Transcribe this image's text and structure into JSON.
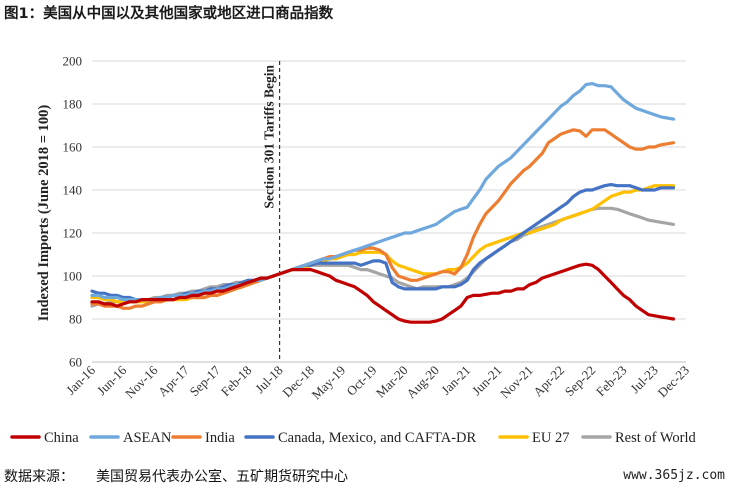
{
  "figure_title": "图1：美国从中国以及其他国家或地区进口商品指数",
  "footer": {
    "source_label": "数据来源：",
    "source_text": "美国贸易代表办公室、五矿期货研究中心",
    "watermark": "www.365jz.com"
  },
  "chart_data": {
    "type": "line",
    "title": "",
    "xlabel": "",
    "ylabel": "Indexed Imports (June 2018 = 100)",
    "ylim": [
      60,
      200
    ],
    "yticks": [
      60,
      80,
      100,
      120,
      140,
      160,
      180,
      200
    ],
    "x_start": "Jan-16",
    "x_tick_labels": [
      "Jan-16",
      "Jun-16",
      "Nov-16",
      "Apr-17",
      "Sep-17",
      "Feb-18",
      "Jul-18",
      "Dec-18",
      "May-19",
      "Oct-19",
      "Mar-20",
      "Aug-20",
      "Jan-21",
      "Jun-21",
      "Nov-21",
      "Apr-22",
      "Sep-22",
      "Feb-23",
      "Jul-23",
      "Dec-23"
    ],
    "grid": "horizontal",
    "legend_position": "bottom",
    "annotation": {
      "text": "Section 301 Tariffs Begin",
      "at": "Jul-18"
    },
    "series": [
      {
        "name": "China",
        "color": "#c00000",
        "values": [
          88,
          88,
          87,
          87,
          86,
          87,
          88,
          88,
          89,
          89,
          89,
          89,
          89,
          89,
          90,
          90,
          91,
          91,
          92,
          92,
          93,
          93,
          94,
          95,
          96,
          97,
          98,
          99,
          99,
          100,
          101,
          102,
          103,
          103,
          103,
          103,
          102,
          101,
          100,
          98,
          97,
          96,
          95,
          93,
          91,
          88,
          86,
          84,
          82,
          80,
          79,
          78.5,
          78.5,
          78.5,
          78.5,
          79,
          80,
          82,
          84,
          86,
          90,
          91,
          91,
          91.5,
          92,
          92,
          93,
          93,
          94,
          94,
          96,
          97,
          99,
          100,
          101,
          102,
          103,
          104,
          105,
          105.5,
          105,
          103,
          100,
          97,
          94,
          91,
          89,
          86,
          84,
          82,
          81.5,
          81,
          80.5,
          80
        ]
      },
      {
        "name": "ASEAN",
        "color": "#6fa8dc",
        "values": [
          91,
          91,
          90,
          90,
          90,
          89,
          89,
          89,
          89,
          89,
          89,
          90,
          90,
          91,
          91,
          91,
          92,
          92,
          93,
          93,
          94,
          94,
          95,
          96,
          96,
          97,
          98,
          98,
          99,
          100,
          101,
          102,
          103,
          104,
          105,
          106,
          107,
          108,
          108,
          109,
          110,
          111,
          112,
          113,
          114,
          115,
          116,
          117,
          118,
          119,
          120,
          120,
          121,
          122,
          123,
          124,
          126,
          128,
          130,
          131,
          132,
          136,
          140,
          145,
          148,
          151,
          153,
          155,
          158,
          161,
          164,
          167,
          170,
          173,
          176,
          179,
          181,
          184,
          186,
          189,
          189.5,
          188.5,
          188.5,
          188,
          185,
          182,
          180,
          178,
          177,
          176,
          175,
          174,
          173.5,
          173
        ]
      },
      {
        "name": "India",
        "color": "#ed7d31",
        "values": [
          87,
          87,
          86,
          86,
          86,
          85,
          85,
          86,
          86,
          87,
          88,
          88,
          89,
          89,
          90,
          90,
          90,
          90,
          90,
          91,
          91,
          92,
          93,
          94,
          95,
          96,
          97,
          98,
          99,
          100,
          101,
          102,
          103,
          104,
          105,
          106,
          107,
          108,
          109,
          109,
          110,
          111,
          112,
          112,
          113,
          113,
          112,
          110,
          104,
          100,
          99,
          98,
          98,
          99,
          100,
          101,
          102,
          102,
          101,
          104,
          110,
          118,
          124,
          129,
          132,
          135,
          139,
          143,
          146,
          149,
          151,
          154,
          157,
          162,
          164,
          166,
          167,
          168,
          167.5,
          165,
          168,
          168,
          168,
          166,
          164,
          162,
          160,
          159,
          159,
          160,
          160,
          161,
          161.5,
          162
        ]
      },
      {
        "name": "Canada, Mexico, and CAFTA-DR",
        "color": "#4472c4",
        "values": [
          93,
          92,
          92,
          91,
          91,
          90,
          90,
          89,
          89,
          89,
          89,
          90,
          90,
          91,
          91,
          92,
          92,
          93,
          93,
          94,
          94,
          95,
          96,
          96,
          97,
          98,
          98,
          99,
          99,
          100,
          101,
          102,
          103,
          104,
          105,
          105,
          106,
          106,
          106,
          106,
          106,
          106,
          106,
          105,
          106,
          107,
          107,
          106,
          97,
          95,
          94,
          94,
          94,
          94,
          94,
          94,
          95,
          95,
          95,
          96,
          98,
          103,
          106,
          108,
          110,
          112,
          114,
          116,
          118,
          120,
          122,
          124,
          126,
          128,
          130,
          132,
          134,
          137,
          139,
          140,
          140,
          141,
          142,
          142.5,
          142,
          142,
          142,
          141,
          140,
          140,
          140,
          141,
          141,
          141
        ]
      },
      {
        "name": "EU 27",
        "color": "#ffc000",
        "values": [
          90,
          90,
          89,
          89,
          88,
          88,
          88,
          88,
          88,
          88,
          88,
          88,
          89,
          89,
          89,
          89,
          90,
          90,
          90,
          91,
          91,
          92,
          93,
          94,
          95,
          96,
          97,
          98,
          99,
          100,
          101,
          102,
          103,
          104,
          104,
          105,
          106,
          107,
          108,
          108,
          109,
          110,
          110,
          111,
          111,
          111,
          111,
          110,
          107,
          105,
          104,
          103,
          102,
          101,
          101,
          101,
          102,
          103,
          103,
          104,
          106,
          109,
          112,
          114,
          115,
          116,
          117,
          118,
          119,
          120,
          120,
          121,
          122,
          123,
          124,
          126,
          127,
          128,
          129,
          130,
          131,
          133,
          135,
          137,
          138,
          139,
          139,
          140,
          140,
          141,
          142,
          142,
          142,
          142
        ]
      },
      {
        "name": "Rest of World",
        "color": "#a5a5a5",
        "values": [
          86,
          87,
          87,
          88,
          88,
          88,
          88,
          89,
          89,
          89,
          90,
          90,
          91,
          91,
          92,
          92,
          93,
          93,
          94,
          95,
          95,
          96,
          96,
          97,
          97,
          98,
          98,
          99,
          99,
          100,
          101,
          102,
          103,
          104,
          104,
          105,
          105,
          105,
          105,
          105,
          105,
          105,
          104,
          103,
          103,
          102,
          101,
          100,
          99,
          97,
          96,
          95,
          94,
          95,
          95,
          95,
          95,
          95,
          96,
          97,
          99,
          102,
          105,
          108,
          110,
          112,
          114,
          116,
          117,
          119,
          120,
          122,
          123,
          124,
          125,
          126,
          127,
          128,
          129,
          130,
          131,
          131.5,
          131.5,
          131.5,
          131,
          130,
          129,
          128,
          127,
          126,
          125.5,
          125,
          124.5,
          124
        ]
      }
    ]
  }
}
